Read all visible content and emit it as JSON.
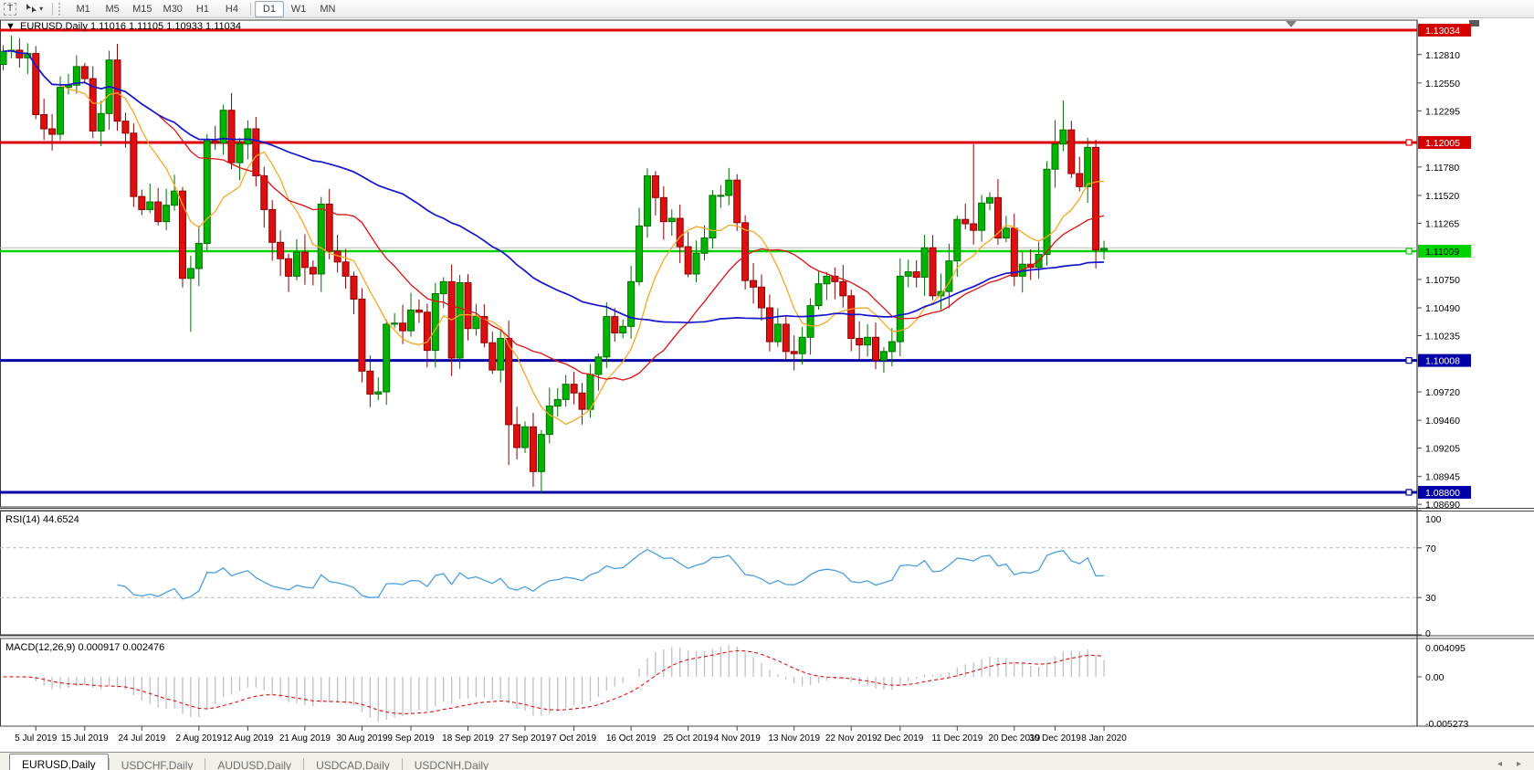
{
  "toolbar": {
    "text_tool": "T",
    "timeframes": [
      "M1",
      "M5",
      "M15",
      "M30",
      "H1",
      "H4",
      "D1",
      "W1",
      "MN"
    ],
    "active_timeframe": "D1"
  },
  "chart_header": {
    "dropdown_icon": "▼",
    "title": "EURUSD,Daily",
    "ohlc_text": "1.11016 1.11105 1.10933 1.11034"
  },
  "price_scale": {
    "ticks": [
      "1.12810",
      "1.12550",
      "1.12295",
      "1.11780",
      "1.11520",
      "1.11265",
      "1.10750",
      "1.10490",
      "1.10235",
      "1.09720",
      "1.09460",
      "1.09205",
      "1.08945",
      "1.08690"
    ],
    "badges": [
      {
        "label": "1.13034",
        "price": 1.13034,
        "bg": "#d40000",
        "fg": "#ffffff"
      },
      {
        "label": "1.12005",
        "price": 1.12005,
        "bg": "#d40000",
        "fg": "#ffffff"
      },
      {
        "label": "1.11009",
        "price": 1.11009,
        "bg": "#00d300",
        "fg": "#000000"
      },
      {
        "label": "1.10008",
        "price": 1.10008,
        "bg": "#0000a8",
        "fg": "#ffffff"
      },
      {
        "label": "1.08800",
        "price": 1.088,
        "bg": "#0000a8",
        "fg": "#ffffff"
      }
    ]
  },
  "hlines": [
    {
      "price": 1.13034,
      "color": "#dd0000",
      "width": 3,
      "handle": false,
      "name": "resistance-line-1.13034"
    },
    {
      "price": 1.12005,
      "color": "#dd0000",
      "width": 3,
      "handle": true,
      "name": "resistance-line-1.12005"
    },
    {
      "price": 1.1104,
      "color": "#bdbdbd",
      "width": 1,
      "handle": false,
      "name": "current-price-line"
    },
    {
      "price": 1.11009,
      "color": "#00d300",
      "width": 2.5,
      "handle": true,
      "name": "support-line-1.11009"
    },
    {
      "price": 1.10008,
      "color": "#0000a8",
      "width": 3,
      "handle": true,
      "name": "support-line-1.10008"
    },
    {
      "price": 1.088,
      "color": "#0000a8",
      "width": 3,
      "handle": true,
      "name": "support-line-1.08800"
    }
  ],
  "rsi_panel": {
    "label": "RSI(14) 44.6524",
    "scale": [
      [
        "100",
        100
      ],
      [
        "70",
        70
      ],
      [
        "30",
        30
      ],
      [
        "0",
        0
      ]
    ],
    "levels": [
      70,
      30
    ],
    "line_color": "#4a9ee0"
  },
  "macd_panel": {
    "label": "MACD(12,26,9) 0.000917 0.002476",
    "scale": [
      [
        "0.004095",
        0.004095
      ],
      [
        "0.00",
        0
      ],
      [
        "-0.005273",
        -0.005273
      ]
    ],
    "histogram_color": "#c0c0c0",
    "signal_color": "#e01010"
  },
  "date_labels": [
    {
      "t": "5 Jul 2019",
      "i": 4
    },
    {
      "t": "15 Jul 2019",
      "i": 10
    },
    {
      "t": "24 Jul 2019",
      "i": 17
    },
    {
      "t": "2 Aug 2019",
      "i": 24
    },
    {
      "t": "12 Aug 2019",
      "i": 30
    },
    {
      "t": "21 Aug 2019",
      "i": 37
    },
    {
      "t": "30 Aug 2019",
      "i": 44
    },
    {
      "t": "9 Sep 2019",
      "i": 50
    },
    {
      "t": "18 Sep 2019",
      "i": 57
    },
    {
      "t": "27 Sep 2019",
      "i": 64
    },
    {
      "t": "7 Oct 2019",
      "i": 70
    },
    {
      "t": "16 Oct 2019",
      "i": 77
    },
    {
      "t": "25 Oct 2019",
      "i": 84
    },
    {
      "t": "4 Nov 2019",
      "i": 90
    },
    {
      "t": "13 Nov 2019",
      "i": 97
    },
    {
      "t": "22 Nov 2019",
      "i": 104
    },
    {
      "t": "2 Dec 2019",
      "i": 110
    },
    {
      "t": "11 Dec 2019",
      "i": 117
    },
    {
      "t": "20 Dec 2019",
      "i": 124
    },
    {
      "t": "30 Dec 2019",
      "i": 129
    },
    {
      "t": "8 Jan 2020",
      "i": 135
    }
  ],
  "tabbar": {
    "tabs": [
      "EURUSD,Daily",
      "USDCHF,Daily",
      "AUDUSD,Daily",
      "USDCAD,Daily",
      "USDCNH,Daily"
    ],
    "active_index": 0,
    "left_arrow": "◂",
    "right_arrow": "▸"
  },
  "colors": {
    "candle_up": "#00b400",
    "candle_up_border": "#006e00",
    "candle_down": "#dc1010",
    "candle_down_border": "#8e0000",
    "ma_fast": "#f5a823",
    "ma_medium": "#e01010",
    "ma_slow": "#1414cc",
    "panel_border": "#3a3a3a"
  },
  "chart_data": {
    "type": "candlestick",
    "symbol": "EURUSD",
    "timeframe": "Daily",
    "last_ohlc": {
      "open": 1.11016,
      "high": 1.11105,
      "low": 1.10933,
      "close": 1.11034
    },
    "price_axis_range": [
      1.08666,
      1.13126
    ],
    "horizontal_levels": [
      1.13034,
      1.12005,
      1.11009,
      1.10008,
      1.088
    ],
    "closes": [
      1.1284,
      1.1285,
      1.1278,
      1.1282,
      1.1226,
      1.1213,
      1.1208,
      1.1251,
      1.1253,
      1.127,
      1.1259,
      1.1211,
      1.1227,
      1.1276,
      1.122,
      1.1209,
      1.1151,
      1.1139,
      1.1146,
      1.1128,
      1.1143,
      1.1156,
      1.1076,
      1.1085,
      1.1108,
      1.1202,
      1.12,
      1.123,
      1.1182,
      1.1199,
      1.1213,
      1.117,
      1.1139,
      1.1109,
      1.1094,
      1.1078,
      1.11,
      1.1086,
      1.108,
      1.1144,
      1.1101,
      1.1091,
      1.1078,
      1.1057,
      1.0991,
      1.097,
      1.0972,
      1.1034,
      1.1035,
      1.1028,
      1.1047,
      1.1045,
      1.101,
      1.1062,
      1.1073,
      1.1003,
      1.1072,
      1.103,
      1.1041,
      1.1017,
      1.0992,
      1.1021,
      1.0942,
      1.0921,
      1.094,
      1.0899,
      1.0933,
      1.0959,
      1.0965,
      1.0979,
      1.0971,
      1.0956,
      1.0988,
      1.1004,
      1.1041,
      1.1026,
      1.1032,
      1.1073,
      1.1124,
      1.117,
      1.115,
      1.1128,
      1.1131,
      1.1105,
      1.108,
      1.1099,
      1.1113,
      1.1152,
      1.1152,
      1.1166,
      1.1127,
      1.1074,
      1.1068,
      1.1049,
      1.1018,
      1.1034,
      1.1009,
      1.1007,
      1.1022,
      1.1051,
      1.1071,
      1.1078,
      1.1073,
      1.106,
      1.1021,
      1.1015,
      1.1022,
      1.1001,
      1.1009,
      1.1018,
      1.1078,
      1.1082,
      1.1077,
      1.1104,
      1.106,
      1.1064,
      1.1092,
      1.113,
      1.1126,
      1.112,
      1.1145,
      1.115,
      1.1113,
      1.1122,
      1.1078,
      1.1089,
      1.1086,
      1.1098,
      1.1176,
      1.1199,
      1.1212,
      1.1172,
      1.116,
      1.1196,
      1.1102,
      1.11034
    ],
    "wick_overrides": {
      "23": {
        "l": 1.1027
      },
      "62": {
        "l": 1.0905
      },
      "65": {
        "l": 1.0885
      },
      "66": {
        "l": 1.0879
      },
      "119": {
        "h": 1.1199
      },
      "129": {
        "h": 1.1221
      },
      "130": {
        "h": 1.1239
      },
      "134": {
        "l": 1.1085
      },
      "135": {
        "o": 1.11016,
        "h": 1.11105,
        "l": 1.10933
      }
    },
    "moving_averages": [
      {
        "name": "fast",
        "period": 8,
        "color": "#f5a823"
      },
      {
        "name": "medium",
        "period": 20,
        "color": "#e01010"
      },
      {
        "name": "slow",
        "period": 50,
        "color": "#1414cc"
      }
    ],
    "rsi": {
      "period": 14,
      "last": 44.6524,
      "levels": [
        70,
        30
      ]
    },
    "macd": {
      "fast": 12,
      "slow": 26,
      "signal": 9,
      "last_macd": 0.000917,
      "last_signal": 0.002476,
      "scale_max": 0.004095,
      "scale_min": -0.005273
    }
  }
}
